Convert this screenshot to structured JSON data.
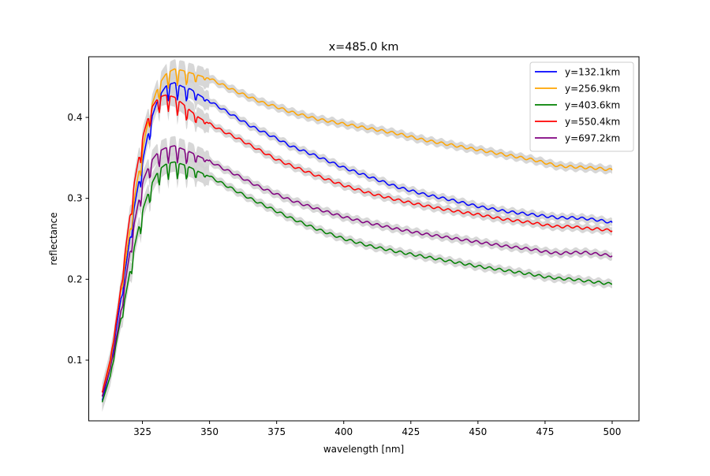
{
  "chart_data": {
    "type": "line",
    "title": "x=485.0 km",
    "xlabel": "wavelength [nm]",
    "ylabel": "reflectance",
    "xlim": [
      305,
      510
    ],
    "ylim": [
      0.025,
      0.475
    ],
    "xticks": [
      325,
      350,
      375,
      400,
      425,
      450,
      475,
      500
    ],
    "yticks": [
      0.1,
      0.2,
      0.3,
      0.4
    ],
    "grid": false,
    "legend_position": "upper-right",
    "band_color": "#d3d3d3",
    "series": [
      {
        "name": "y=132.1km",
        "color": "#0000ff",
        "x": [
          310,
          313,
          316,
          319,
          322,
          325,
          328,
          331,
          334,
          337,
          340,
          343,
          346,
          350,
          355,
          360,
          365,
          370,
          375,
          380,
          390,
          400,
          410,
          420,
          430,
          440,
          450,
          460,
          470,
          475,
          480,
          485,
          490,
          495,
          500
        ],
        "y": [
          0.05,
          0.09,
          0.155,
          0.22,
          0.29,
          0.345,
          0.395,
          0.425,
          0.44,
          0.443,
          0.438,
          0.435,
          0.428,
          0.42,
          0.41,
          0.4,
          0.39,
          0.382,
          0.374,
          0.365,
          0.352,
          0.338,
          0.326,
          0.314,
          0.305,
          0.298,
          0.29,
          0.284,
          0.28,
          0.278,
          0.276,
          0.276,
          0.275,
          0.273,
          0.27
        ]
      },
      {
        "name": "y=256.9km",
        "color": "#ffa500",
        "x": [
          310,
          313,
          316,
          319,
          322,
          325,
          328,
          331,
          334,
          337,
          340,
          343,
          346,
          350,
          355,
          360,
          365,
          370,
          375,
          380,
          390,
          400,
          410,
          420,
          430,
          440,
          450,
          460,
          470,
          475,
          480,
          485,
          490,
          495,
          500
        ],
        "y": [
          0.055,
          0.095,
          0.165,
          0.23,
          0.3,
          0.36,
          0.41,
          0.44,
          0.455,
          0.46,
          0.458,
          0.455,
          0.452,
          0.448,
          0.44,
          0.432,
          0.425,
          0.418,
          0.413,
          0.407,
          0.398,
          0.392,
          0.386,
          0.38,
          0.372,
          0.366,
          0.36,
          0.354,
          0.348,
          0.344,
          0.34,
          0.339,
          0.338,
          0.337,
          0.335
        ]
      },
      {
        "name": "y=403.6km",
        "color": "#008000",
        "x": [
          310,
          313,
          316,
          319,
          322,
          325,
          328,
          331,
          334,
          337,
          340,
          343,
          346,
          350,
          355,
          360,
          365,
          370,
          375,
          380,
          390,
          400,
          410,
          420,
          430,
          440,
          450,
          460,
          470,
          475,
          480,
          485,
          490,
          495,
          500
        ],
        "y": [
          0.048,
          0.08,
          0.135,
          0.185,
          0.24,
          0.285,
          0.315,
          0.335,
          0.343,
          0.345,
          0.342,
          0.338,
          0.333,
          0.327,
          0.318,
          0.309,
          0.3,
          0.292,
          0.284,
          0.276,
          0.262,
          0.25,
          0.241,
          0.234,
          0.228,
          0.222,
          0.216,
          0.211,
          0.206,
          0.203,
          0.201,
          0.2,
          0.198,
          0.196,
          0.194
        ]
      },
      {
        "name": "y=550.4km",
        "color": "#ff0000",
        "x": [
          310,
          313,
          316,
          319,
          322,
          325,
          328,
          331,
          334,
          337,
          340,
          343,
          346,
          350,
          355,
          360,
          365,
          370,
          375,
          380,
          390,
          400,
          410,
          420,
          430,
          440,
          450,
          460,
          470,
          475,
          480,
          485,
          490,
          495,
          500
        ],
        "y": [
          0.06,
          0.1,
          0.165,
          0.245,
          0.32,
          0.375,
          0.41,
          0.425,
          0.428,
          0.425,
          0.417,
          0.408,
          0.4,
          0.392,
          0.383,
          0.375,
          0.366,
          0.357,
          0.348,
          0.341,
          0.328,
          0.316,
          0.306,
          0.298,
          0.291,
          0.285,
          0.28,
          0.274,
          0.27,
          0.267,
          0.265,
          0.265,
          0.263,
          0.262,
          0.26
        ]
      },
      {
        "name": "y=697.2km",
        "color": "#800080",
        "x": [
          310,
          313,
          316,
          319,
          322,
          325,
          328,
          331,
          334,
          337,
          340,
          343,
          346,
          350,
          355,
          360,
          365,
          370,
          375,
          380,
          390,
          400,
          410,
          420,
          430,
          440,
          450,
          460,
          470,
          475,
          480,
          485,
          490,
          495,
          500
        ],
        "y": [
          0.055,
          0.09,
          0.14,
          0.205,
          0.27,
          0.32,
          0.345,
          0.358,
          0.363,
          0.365,
          0.361,
          0.357,
          0.352,
          0.346,
          0.337,
          0.329,
          0.32,
          0.312,
          0.305,
          0.298,
          0.287,
          0.277,
          0.269,
          0.262,
          0.256,
          0.251,
          0.246,
          0.241,
          0.237,
          0.234,
          0.232,
          0.233,
          0.233,
          0.231,
          0.229
        ]
      }
    ]
  }
}
